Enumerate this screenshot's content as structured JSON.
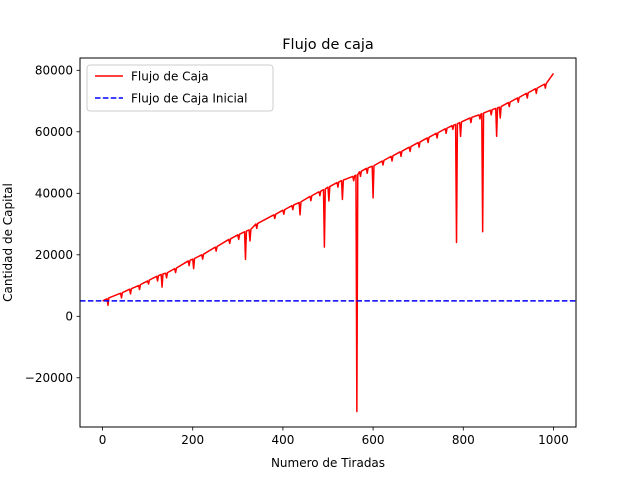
{
  "chart_data": {
    "type": "line",
    "title": "Flujo de caja",
    "xlabel": "Numero de Tiradas",
    "ylabel": "Cantidad de Capital",
    "xlim": [
      -50,
      1050
    ],
    "ylim": [
      -36000,
      84000
    ],
    "xticks": [
      0,
      200,
      400,
      600,
      800,
      1000
    ],
    "yticks": [
      -20000,
      0,
      20000,
      40000,
      60000,
      80000
    ],
    "grid": false,
    "legend_position": "top-left",
    "series": [
      {
        "name": "Flujo de Caja",
        "color": "#ff0000",
        "style": "solid",
        "x": [
          0,
          10,
          12,
          14,
          16,
          40,
          42,
          44,
          60,
          62,
          64,
          80,
          82,
          84,
          100,
          102,
          104,
          120,
          122,
          124,
          130,
          132,
          134,
          140,
          142,
          144,
          160,
          162,
          164,
          190,
          192,
          194,
          200,
          202,
          204,
          220,
          222,
          224,
          250,
          252,
          254,
          280,
          282,
          284,
          300,
          302,
          304,
          315,
          317,
          319,
          325,
          327,
          329,
          340,
          342,
          344,
          380,
          382,
          384,
          400,
          402,
          404,
          420,
          422,
          424,
          436,
          438,
          440,
          460,
          462,
          464,
          480,
          482,
          484,
          490,
          492,
          494,
          500,
          502,
          504,
          520,
          522,
          524,
          530,
          532,
          534,
          555,
          557,
          559,
          562,
          564,
          566,
          570,
          572,
          574,
          585,
          587,
          589,
          598,
          600,
          602,
          620,
          622,
          624,
          640,
          642,
          644,
          660,
          662,
          664,
          680,
          682,
          684,
          700,
          702,
          704,
          720,
          722,
          724,
          740,
          742,
          744,
          760,
          762,
          764,
          775,
          777,
          779,
          783,
          785,
          787,
          792,
          794,
          796,
          815,
          817,
          819,
          835,
          837,
          839,
          841,
          843,
          845,
          860,
          862,
          864,
          872,
          874,
          876,
          880,
          882,
          884,
          900,
          902,
          904,
          920,
          922,
          924,
          940,
          942,
          944,
          960,
          962,
          964,
          980,
          982,
          984,
          1000
        ],
        "y": [
          5000,
          5700,
          3600,
          6000,
          6100,
          7500,
          6000,
          7700,
          8800,
          7300,
          9000,
          10000,
          8700,
          10300,
          11500,
          10500,
          11800,
          13000,
          11500,
          13200,
          13600,
          9500,
          13800,
          14000,
          12500,
          14200,
          15500,
          14200,
          15700,
          18000,
          16500,
          18200,
          18600,
          15500,
          18800,
          20000,
          18600,
          20200,
          22500,
          21200,
          22700,
          25000,
          23700,
          25200,
          26500,
          25000,
          26700,
          27500,
          18500,
          27700,
          28100,
          24500,
          28300,
          30000,
          28600,
          30200,
          33000,
          31800,
          33200,
          34500,
          33200,
          34700,
          36000,
          34700,
          36200,
          37000,
          33000,
          37200,
          39000,
          37600,
          39200,
          40500,
          39200,
          40700,
          41200,
          22500,
          41400,
          42000,
          37500,
          42200,
          43500,
          42000,
          43700,
          44100,
          38000,
          44300,
          45500,
          44100,
          45700,
          45900,
          -31000,
          46100,
          47000,
          45500,
          47200,
          48100,
          46500,
          48300,
          48800,
          38500,
          49000,
          50500,
          49200,
          50700,
          52000,
          50500,
          52200,
          53500,
          52000,
          53700,
          55000,
          53600,
          55200,
          56500,
          55000,
          56700,
          58000,
          56500,
          58200,
          59500,
          58000,
          59700,
          61000,
          59500,
          61200,
          62000,
          60800,
          62200,
          62400,
          24000,
          62600,
          63000,
          58500,
          63200,
          64500,
          63000,
          64700,
          65500,
          64200,
          65700,
          65900,
          27500,
          66100,
          67000,
          65500,
          67200,
          67600,
          58500,
          67800,
          68000,
          64500,
          68200,
          69500,
          68200,
          69700,
          71000,
          69600,
          71200,
          72500,
          71000,
          72700,
          74000,
          72500,
          74200,
          75500,
          74200,
          75700,
          79000
        ]
      },
      {
        "name": "Flujo de Caja Inicial",
        "color": "#0000ff",
        "style": "dashed",
        "x": [
          -50,
          1050
        ],
        "y": [
          5000,
          5000
        ]
      }
    ]
  }
}
